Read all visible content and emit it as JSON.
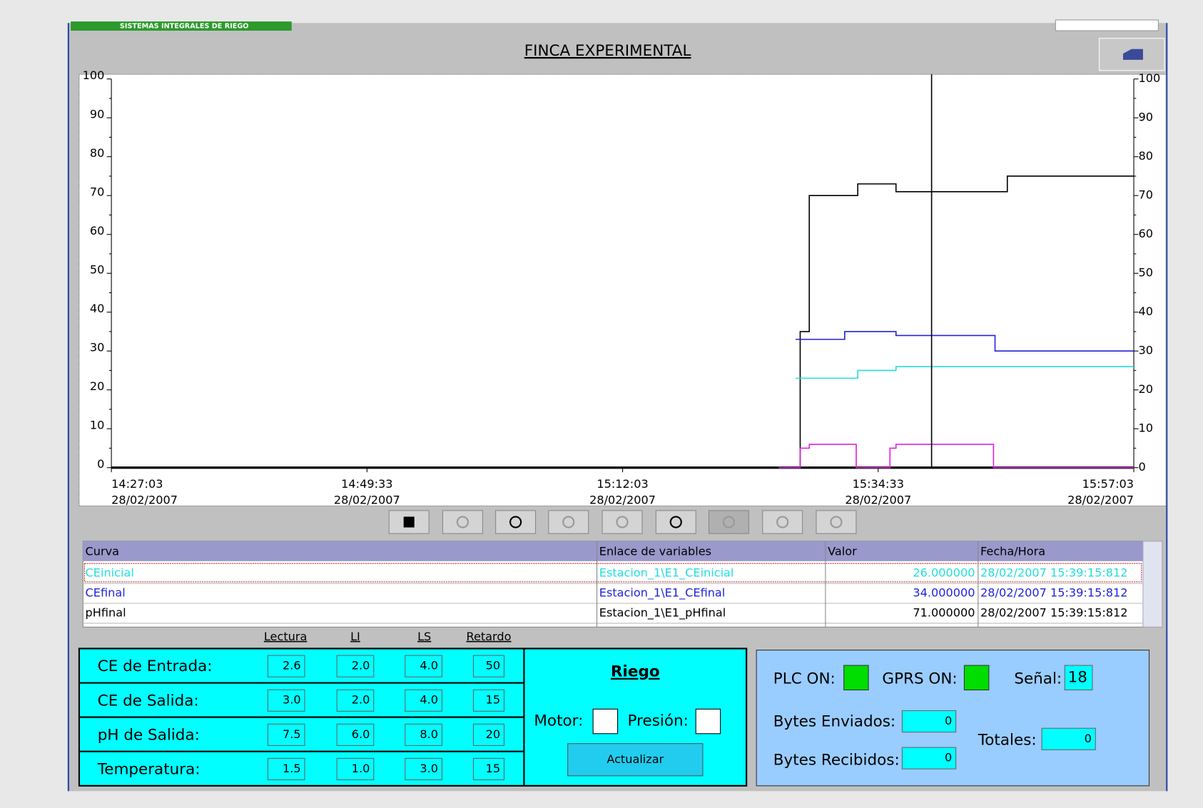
{
  "header": {
    "banner": "SISTEMAS INTEGRALES DE RIEGO",
    "title": "FINCA EXPERIMENTAL"
  },
  "chart_data": {
    "type": "line",
    "ylim": [
      0,
      100
    ],
    "yticks": [
      0,
      10,
      20,
      30,
      40,
      50,
      60,
      70,
      80,
      90,
      100
    ],
    "xlim": [
      "14:27:03",
      "15:57:03"
    ],
    "xticks": [
      {
        "time": "14:27:03",
        "date": "28/02/2007"
      },
      {
        "time": "14:49:33",
        "date": "28/02/2007"
      },
      {
        "time": "15:12:03",
        "date": "28/02/2007"
      },
      {
        "time": "15:34:33",
        "date": "28/02/2007"
      },
      {
        "time": "15:57:03",
        "date": "28/02/2007"
      }
    ],
    "cursor": "15:39:15",
    "series": [
      {
        "name": "pHfinal",
        "color": "#000000",
        "x": [
          "14:27:03",
          "15:27:41",
          "15:28:29",
          "15:32:45",
          "15:36:07",
          "15:45:55",
          "15:57:03"
        ],
        "values": [
          0,
          35,
          70,
          73,
          71,
          75,
          75
        ]
      },
      {
        "name": "CEfinal",
        "color": "#2222dd",
        "x": [
          "15:27:17",
          "15:31:36",
          "15:36:07",
          "15:44:50",
          "15:57:03"
        ],
        "values": [
          33,
          35,
          34,
          30,
          30
        ]
      },
      {
        "name": "CEinicial",
        "color": "#22dddd",
        "x": [
          "15:27:17",
          "15:32:45",
          "15:36:07",
          "15:57:03"
        ],
        "values": [
          23,
          25,
          26,
          26
        ]
      },
      {
        "color": "#dd22dd",
        "x": [
          "15:25:47",
          "15:27:41",
          "15:28:29",
          "15:32:37",
          "15:35:35",
          "15:36:07",
          "15:44:42",
          "15:57:03"
        ],
        "values": [
          0,
          5,
          6,
          0,
          5,
          6,
          0,
          0
        ]
      }
    ]
  },
  "table": {
    "headers": [
      "Curva",
      "Enlace de variables",
      "Valor",
      "Fecha/Hora"
    ],
    "rows": [
      [
        "CEinicial",
        "Estacion_1\\E1_CEinicial",
        "26.000000",
        "28/02/2007 15:39:15:812"
      ],
      [
        "CEfinal",
        "Estacion_1\\E1_CEfinal",
        "34.000000",
        "28/02/2007 15:39:15:812"
      ],
      [
        "pHfinal",
        "Estacion_1\\E1_pHfinal",
        "71.000000",
        "28/02/2007 15:39:15:812"
      ]
    ]
  },
  "params": {
    "headers": [
      "Lectura",
      "LI",
      "LS",
      "Retardo"
    ],
    "rows": [
      [
        "CE de Entrada:",
        "2.6",
        "2.0",
        "4.0",
        "50"
      ],
      [
        "CE de Salida:",
        "3.0",
        "2.0",
        "4.0",
        "15"
      ],
      [
        "pH de Salida:",
        "7.5",
        "6.0",
        "8.0",
        "20"
      ],
      [
        "Temperatura:",
        "1.5",
        "1.0",
        "3.0",
        "15"
      ]
    ]
  },
  "riego": {
    "title": "Riego",
    "motor": "Motor:",
    "presion": "Presión:",
    "button": "Actualizar"
  },
  "status": {
    "plc": "PLC ON:",
    "gprs": "GPRS ON:",
    "senal": "Señal:",
    "senal_value": "18",
    "enviados": "Bytes Enviados:",
    "enviados_value": "0",
    "recibidos": "Bytes Recibidos:",
    "recibidos_value": "0",
    "totales": "Totales:",
    "totales_value": "0"
  }
}
